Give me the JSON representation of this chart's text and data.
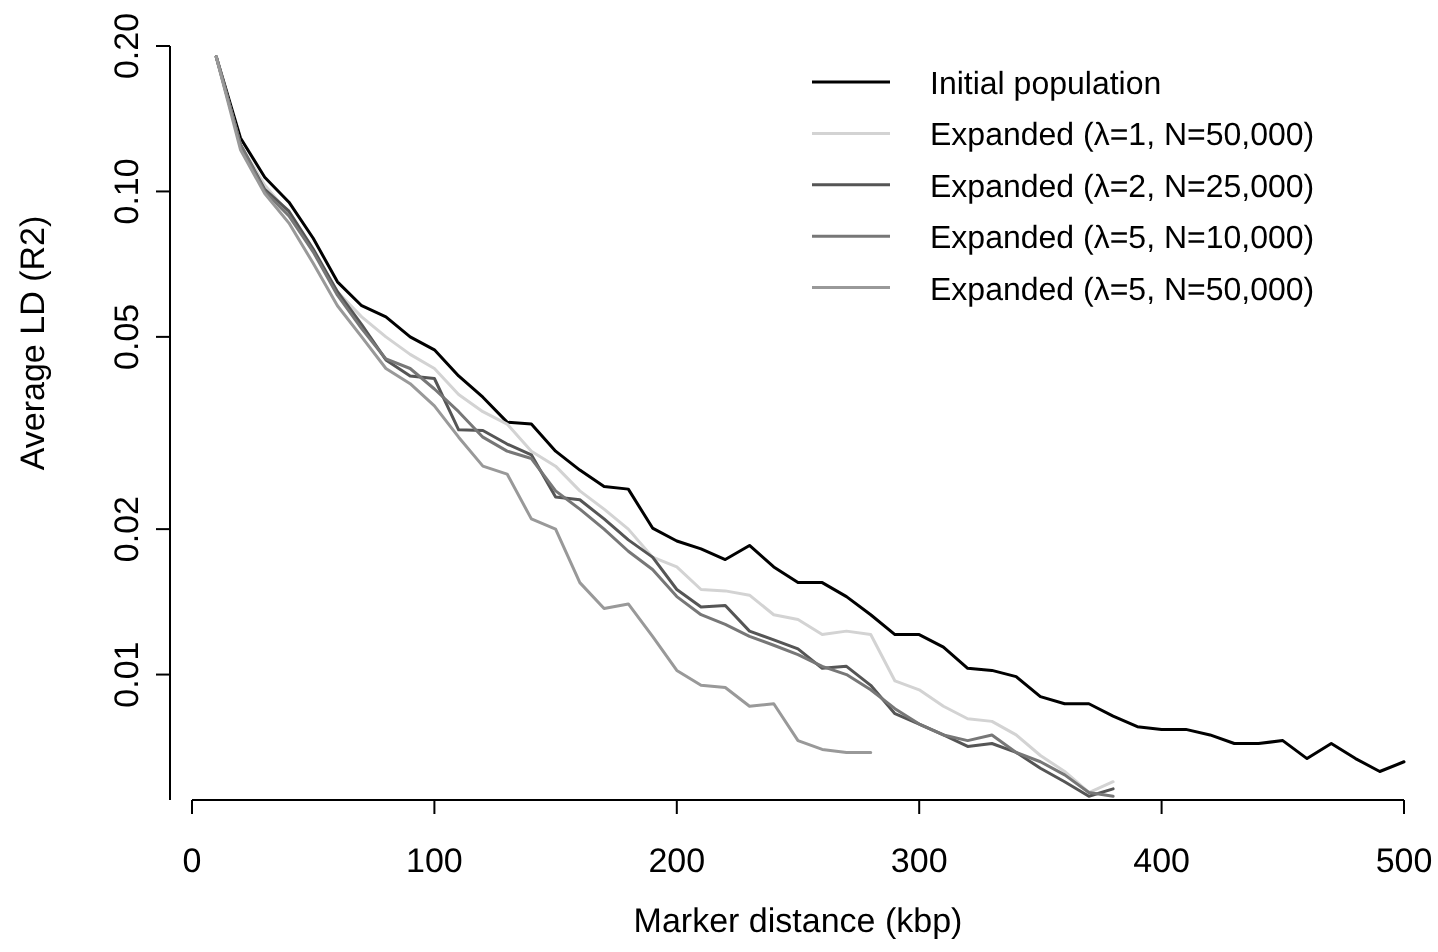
{
  "chart_data": {
    "type": "line",
    "xlabel": "Marker distance (kbp)",
    "ylabel": "Average LD (R2)",
    "log": "y",
    "legend": "top right",
    "grid": false,
    "line_style": "solid",
    "xlim": [
      0,
      500
    ],
    "xticks": [
      0,
      100,
      200,
      300,
      400,
      500
    ],
    "ylim": [
      0.0055,
      0.2
    ],
    "yticks": [
      {
        "value": 0.01,
        "label": "0.01"
      },
      {
        "value": 0.02,
        "label": "0.02"
      },
      {
        "value": 0.05,
        "label": "0.05"
      },
      {
        "value": 0.1,
        "label": "0.10"
      },
      {
        "value": 0.2,
        "label": "0.20"
      }
    ],
    "series": [
      {
        "name": "Initial population",
        "color": "#000000",
        "x": [
          10,
          20,
          30,
          40,
          50,
          60,
          70,
          80,
          90,
          100,
          110,
          120,
          130,
          140,
          150,
          160,
          170,
          180,
          190,
          200,
          210,
          220,
          230,
          240,
          250,
          260,
          270,
          280,
          290,
          300,
          310,
          320,
          330,
          340,
          350,
          360,
          370,
          380,
          390,
          400,
          410,
          420,
          430,
          440,
          450,
          460,
          470,
          480,
          490,
          500
        ],
        "values": [
          0.19,
          0.129,
          0.107,
          0.095,
          0.08,
          0.065,
          0.058,
          0.055,
          0.05,
          0.047,
          0.0415,
          0.0375,
          0.0333,
          0.033,
          0.029,
          0.0265,
          0.0245,
          0.0242,
          0.0201,
          0.0189,
          0.0182,
          0.0173,
          0.0185,
          0.0167,
          0.0155,
          0.0155,
          0.0145,
          0.0133,
          0.0121,
          0.0121,
          0.0114,
          0.0103,
          0.0102,
          0.0099,
          0.009,
          0.0087,
          0.0087,
          0.0082,
          0.0078,
          0.0077,
          0.0077,
          0.0075,
          0.0072,
          0.0072,
          0.0073,
          0.0067,
          0.0072,
          0.0067,
          0.0063,
          0.0066
        ]
      },
      {
        "name": "Expanded (λ=1, N=50,000)",
        "color": "#d3d3d3",
        "x": [
          10,
          20,
          30,
          40,
          50,
          60,
          70,
          80,
          90,
          100,
          110,
          120,
          130,
          140,
          150,
          160,
          170,
          180,
          190,
          200,
          210,
          220,
          230,
          240,
          250,
          260,
          270,
          280,
          290,
          300,
          310,
          320,
          330,
          340,
          350,
          360,
          370,
          380
        ],
        "values": [
          0.19,
          0.125,
          0.103,
          0.09,
          0.075,
          0.062,
          0.055,
          0.05,
          0.046,
          0.043,
          0.038,
          0.035,
          0.033,
          0.029,
          0.027,
          0.024,
          0.022,
          0.02,
          0.0175,
          0.0167,
          0.015,
          0.0149,
          0.0146,
          0.0133,
          0.013,
          0.0121,
          0.0123,
          0.0121,
          0.0097,
          0.0093,
          0.0086,
          0.0081,
          0.008,
          0.0075,
          0.0068,
          0.0063,
          0.0057,
          0.006
        ]
      },
      {
        "name": "Expanded (λ=2, N=25,000)",
        "color": "#555555",
        "x": [
          10,
          20,
          30,
          40,
          50,
          60,
          70,
          80,
          90,
          100,
          110,
          120,
          130,
          140,
          150,
          160,
          170,
          180,
          190,
          200,
          210,
          220,
          230,
          240,
          250,
          260,
          270,
          280,
          290,
          300,
          310,
          320,
          330,
          340,
          350,
          360,
          370,
          380
        ],
        "values": [
          0.19,
          0.125,
          0.101,
          0.091,
          0.076,
          0.062,
          0.053,
          0.0448,
          0.0415,
          0.041,
          0.0321,
          0.032,
          0.03,
          0.0285,
          0.0233,
          0.023,
          0.021,
          0.019,
          0.0175,
          0.015,
          0.0138,
          0.0139,
          0.0123,
          0.0118,
          0.0113,
          0.0103,
          0.0104,
          0.0095,
          0.0083,
          0.0079,
          0.0075,
          0.0071,
          0.0072,
          0.0069,
          0.0064,
          0.006,
          0.0056,
          0.0058
        ]
      },
      {
        "name": "Expanded (λ=5, N=10,000)",
        "color": "#777777",
        "x": [
          10,
          20,
          30,
          40,
          50,
          60,
          70,
          80,
          90,
          100,
          110,
          120,
          130,
          140,
          150,
          160,
          170,
          180,
          190,
          200,
          210,
          220,
          230,
          240,
          250,
          260,
          270,
          280,
          290,
          300,
          310,
          320,
          330,
          340,
          350,
          360,
          370,
          380
        ],
        "values": [
          0.19,
          0.125,
          0.1,
          0.089,
          0.075,
          0.061,
          0.052,
          0.045,
          0.043,
          0.039,
          0.035,
          0.031,
          0.029,
          0.028,
          0.024,
          0.022,
          0.02,
          0.018,
          0.0165,
          0.0145,
          0.0133,
          0.0127,
          0.012,
          0.0115,
          0.011,
          0.0104,
          0.01,
          0.0093,
          0.0085,
          0.0079,
          0.0075,
          0.0073,
          0.0075,
          0.0069,
          0.0066,
          0.0062,
          0.0057,
          0.0056
        ]
      },
      {
        "name": "Expanded (λ=5, N=50,000)",
        "color": "#999999",
        "x": [
          10,
          20,
          30,
          40,
          50,
          60,
          70,
          80,
          90,
          100,
          110,
          120,
          130,
          140,
          150,
          160,
          170,
          180,
          190,
          200,
          210,
          220,
          230,
          240,
          250,
          260,
          270,
          280
        ],
        "values": [
          0.19,
          0.122,
          0.099,
          0.086,
          0.071,
          0.058,
          0.05,
          0.043,
          0.04,
          0.036,
          0.031,
          0.027,
          0.026,
          0.021,
          0.02,
          0.0155,
          0.0137,
          0.014,
          0.012,
          0.0102,
          0.0095,
          0.0094,
          0.0086,
          0.0087,
          0.0073,
          0.007,
          0.0069,
          0.0069
        ]
      }
    ]
  }
}
